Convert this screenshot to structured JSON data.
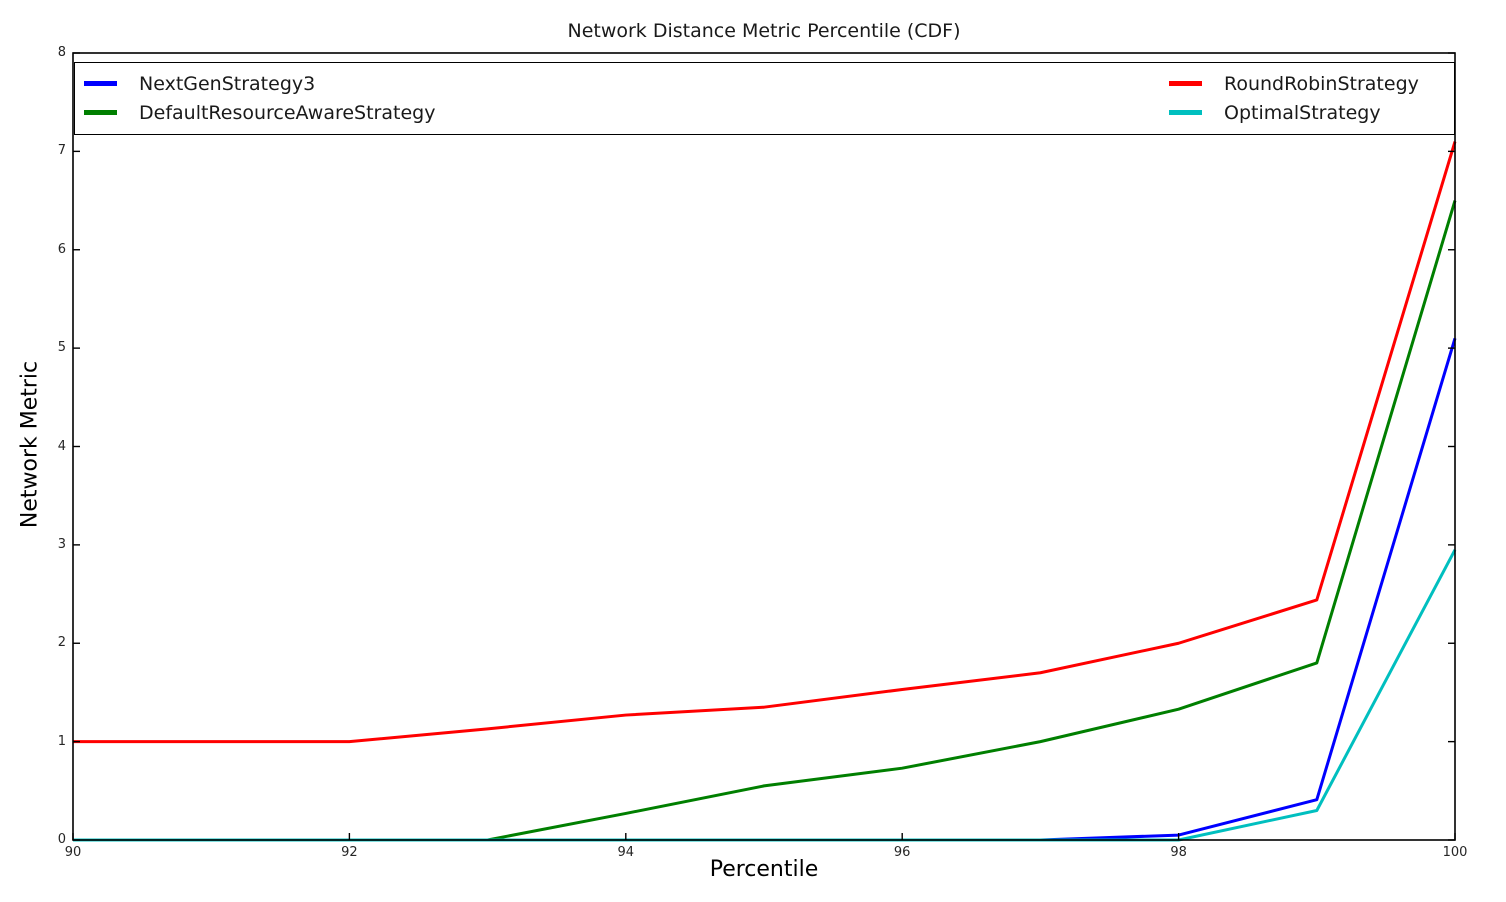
{
  "chart_data": {
    "type": "line",
    "title": "Network Distance Metric Percentile (CDF)",
    "xlabel": "Percentile",
    "ylabel": "Network Metric",
    "xlim": [
      90,
      100
    ],
    "ylim": [
      0,
      8
    ],
    "xticks": [
      90,
      92,
      94,
      96,
      98,
      100
    ],
    "yticks": [
      0,
      1,
      2,
      3,
      4,
      5,
      6,
      7,
      8
    ],
    "grid": false,
    "legend_position": "top inside, expanded full width, 2 columns",
    "x": [
      90,
      91,
      92,
      93,
      94,
      95,
      96,
      97,
      98,
      99,
      100
    ],
    "series": [
      {
        "name": "NextGenStrategy3",
        "color": "#0000ff",
        "values": [
          0,
          0,
          0,
          0,
          0,
          0,
          0,
          0,
          0.05,
          0.41,
          5.1
        ]
      },
      {
        "name": "DefaultResourceAwareStrategy",
        "color": "#007f00",
        "values": [
          0,
          0,
          0,
          0,
          0.27,
          0.55,
          0.73,
          1.0,
          1.33,
          1.8,
          6.5
        ]
      },
      {
        "name": "RoundRobinStrategy",
        "color": "#ff0000",
        "values": [
          1.0,
          1.0,
          1.0,
          1.13,
          1.27,
          1.35,
          1.53,
          1.7,
          2.0,
          2.44,
          7.1
        ]
      },
      {
        "name": "OptimalStrategy",
        "color": "#00bfbf",
        "values": [
          0,
          0,
          0,
          0,
          0,
          0,
          0,
          0,
          0,
          0.3,
          2.95
        ]
      }
    ],
    "legend_columns": [
      [
        0,
        1
      ],
      [
        2,
        3
      ]
    ]
  }
}
